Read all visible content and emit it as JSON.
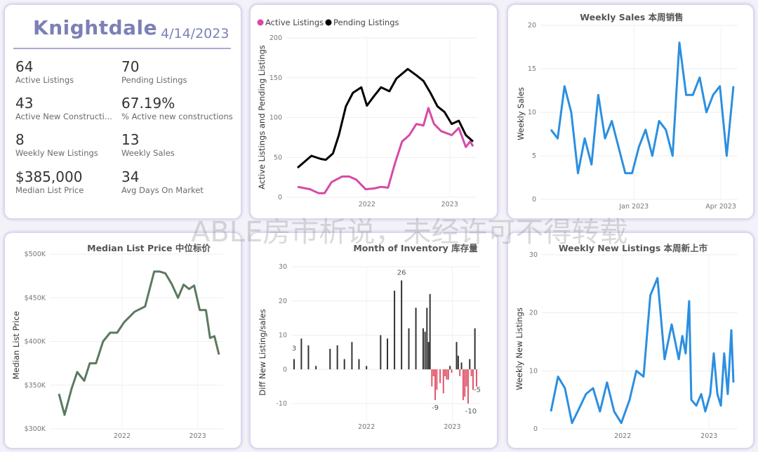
{
  "kpi_card": {
    "city": "Knightdale",
    "date": "4/14/2023",
    "metrics": [
      {
        "value": "64",
        "label": "Active Listings"
      },
      {
        "value": "70",
        "label": "Pending Listings"
      },
      {
        "value": "43",
        "label": "Active New Constructi..."
      },
      {
        "value": "67.19%",
        "label": "% Active new constructions"
      },
      {
        "value": "8",
        "label": "Weekly New Listings"
      },
      {
        "value": "13",
        "label": "Weekly Sales"
      },
      {
        "value": "$385,000",
        "label": "Median List Price"
      },
      {
        "value": "34",
        "label": "Avg Days On Market"
      }
    ]
  },
  "watermark": "ABLE房市析说，未经许可不得转载",
  "chart_data": [
    {
      "id": "listings",
      "type": "line",
      "title": "",
      "ylabel": "Active Listings and Pending Listings",
      "ylim": [
        0,
        200
      ],
      "yticks": [
        "0",
        "50",
        "100",
        "150",
        "200"
      ],
      "xticks": [
        {
          "date": "2022-01-01",
          "label": "2022"
        },
        {
          "date": "2023-01-01",
          "label": "2023"
        }
      ],
      "legend": "top-left",
      "series": [
        {
          "name": "Active Listings",
          "color": "#d64aa7",
          "points": [
            [
              "2021-03-01",
              13
            ],
            [
              "2021-04-25",
              10
            ],
            [
              "2021-06-02",
              5
            ],
            [
              "2021-06-28",
              5
            ],
            [
              "2021-07-29",
              19
            ],
            [
              "2021-09-14",
              26
            ],
            [
              "2021-10-15",
              26
            ],
            [
              "2021-11-15",
              22
            ],
            [
              "2021-12-26",
              10
            ],
            [
              "2022-02-01",
              11
            ],
            [
              "2022-03-04",
              13
            ],
            [
              "2022-04-04",
              12
            ],
            [
              "2022-05-05",
              43
            ],
            [
              "2022-06-05",
              70
            ],
            [
              "2022-07-07",
              78
            ],
            [
              "2022-08-07",
              92
            ],
            [
              "2022-09-07",
              90
            ],
            [
              "2022-09-29",
              112
            ],
            [
              "2022-10-24",
              92
            ],
            [
              "2022-11-24",
              83
            ],
            [
              "2023-01-10",
              78
            ],
            [
              "2023-02-10",
              87
            ],
            [
              "2023-03-13",
              63
            ],
            [
              "2023-04-01",
              70
            ],
            [
              "2023-04-14",
              64
            ]
          ]
        },
        {
          "name": "Pending Listings",
          "color": "#000000",
          "points": [
            [
              "2021-03-01",
              37
            ],
            [
              "2021-05-01",
              52
            ],
            [
              "2021-06-12",
              48
            ],
            [
              "2021-07-03",
              47
            ],
            [
              "2021-08-04",
              55
            ],
            [
              "2021-08-30",
              78
            ],
            [
              "2021-09-30",
              114
            ],
            [
              "2021-10-31",
              131
            ],
            [
              "2021-12-07",
              138
            ],
            [
              "2022-01-01",
              115
            ],
            [
              "2022-02-01",
              127
            ],
            [
              "2022-03-04",
              138
            ],
            [
              "2022-04-10",
              133
            ],
            [
              "2022-05-11",
              149
            ],
            [
              "2022-06-30",
              161
            ],
            [
              "2022-08-07",
              153
            ],
            [
              "2022-09-07",
              146
            ],
            [
              "2022-10-08",
              131
            ],
            [
              "2022-11-08",
              114
            ],
            [
              "2022-12-09",
              107
            ],
            [
              "2023-01-10",
              92
            ],
            [
              "2023-02-10",
              96
            ],
            [
              "2023-03-13",
              78
            ],
            [
              "2023-04-14",
              70
            ]
          ]
        }
      ]
    },
    {
      "id": "weekly-sales",
      "type": "line",
      "title": "Weekly Sales 本周销售",
      "ylabel": "Weekly Sales",
      "ylim": [
        0,
        20
      ],
      "yticks": [
        "0",
        "5",
        "10",
        "15",
        "20"
      ],
      "xticks": [
        {
          "date": "2023-01-01",
          "label": "Jan 2023"
        },
        {
          "date": "2023-04-01",
          "label": "Apr 2023"
        }
      ],
      "series": [
        {
          "color": "#2b8fe0",
          "start": "2022-10-07",
          "interval_days": 7,
          "values": [
            8,
            7,
            13,
            10,
            3,
            7,
            4,
            12,
            7,
            9,
            6,
            3,
            3,
            6,
            8,
            5,
            9,
            8,
            5,
            18,
            12,
            12,
            14,
            10,
            12,
            13,
            5,
            13
          ]
        }
      ]
    },
    {
      "id": "median-price",
      "type": "line",
      "title": "Median List Price  中位标价",
      "ylabel": "Median List Price",
      "ylim": [
        300,
        500
      ],
      "yticks": [
        "$300K",
        "$350K",
        "$400K",
        "$450K",
        "$500K"
      ],
      "xticks": [
        {
          "date": "2022-01-01",
          "label": "2022"
        },
        {
          "date": "2023-01-01",
          "label": "2023"
        }
      ],
      "series": [
        {
          "color": "#5a7a5e",
          "points": [
            [
              "2021-03-02",
              340
            ],
            [
              "2021-03-29",
              316
            ],
            [
              "2021-05-02",
              346
            ],
            [
              "2021-05-29",
              365
            ],
            [
              "2021-07-02",
              355
            ],
            [
              "2021-07-29",
              375
            ],
            [
              "2021-08-28",
              375
            ],
            [
              "2021-10-01",
              400
            ],
            [
              "2021-11-04",
              410
            ],
            [
              "2021-12-08",
              410
            ],
            [
              "2022-01-11",
              422
            ],
            [
              "2022-03-02",
              434
            ],
            [
              "2022-04-22",
              440
            ],
            [
              "2022-06-05",
              480
            ],
            [
              "2022-07-02",
              480
            ],
            [
              "2022-07-29",
              478
            ],
            [
              "2022-08-28",
              466
            ],
            [
              "2022-09-28",
              450
            ],
            [
              "2022-10-25",
              465
            ],
            [
              "2022-11-21",
              460
            ],
            [
              "2022-12-15",
              464
            ],
            [
              "2023-01-11",
              436
            ],
            [
              "2023-02-10",
              436
            ],
            [
              "2023-03-02",
              404
            ],
            [
              "2023-03-23",
              406
            ],
            [
              "2023-04-14",
              385
            ]
          ]
        }
      ]
    },
    {
      "id": "inventory",
      "type": "bar",
      "title": "Month of Inventory 库存量",
      "ylabel": "Diff New Listing/sales",
      "ylim": [
        -10,
        30
      ],
      "yticks": [
        "-10",
        "0",
        "10",
        "20",
        "30"
      ],
      "xticks": [
        {
          "date": "2022-01-01",
          "label": "2022"
        },
        {
          "date": "2023-01-01",
          "label": "2023"
        }
      ],
      "positive_color": "#333333",
      "negative_color": "#e0576b",
      "data_labels": [
        "3",
        "26",
        "-9",
        "-10",
        "-5"
      ],
      "bars": [
        [
          "2021-02-27",
          3
        ],
        [
          "2021-03-30",
          9
        ],
        [
          "2021-04-29",
          7
        ],
        [
          "2021-05-31",
          1
        ],
        [
          "2021-07-30",
          6
        ],
        [
          "2021-08-30",
          7
        ],
        [
          "2021-09-29",
          3
        ],
        [
          "2021-10-31",
          8
        ],
        [
          "2021-11-30",
          3
        ],
        [
          "2022-01-01",
          1
        ],
        [
          "2022-03-02",
          10
        ],
        [
          "2022-03-31",
          9
        ],
        [
          "2022-04-30",
          23
        ],
        [
          "2022-05-30",
          26
        ],
        [
          "2022-06-30",
          12
        ],
        [
          "2022-07-30",
          18
        ],
        [
          "2022-08-30",
          12
        ],
        [
          "2022-09-07",
          11
        ],
        [
          "2022-09-15",
          18
        ],
        [
          "2022-09-22",
          8
        ],
        [
          "2022-09-28",
          22
        ],
        [
          "2022-10-06",
          -5
        ],
        [
          "2022-10-13",
          -2
        ],
        [
          "2022-10-20",
          -9
        ],
        [
          "2022-10-27",
          -6
        ],
        [
          "2022-11-10",
          -4
        ],
        [
          "2022-11-24",
          -7
        ],
        [
          "2022-12-01",
          -2
        ],
        [
          "2022-12-08",
          -3
        ],
        [
          "2022-12-15",
          -3
        ],
        [
          "2022-12-22",
          1
        ],
        [
          "2022-12-29",
          -1
        ],
        [
          "2023-01-19",
          8
        ],
        [
          "2023-01-26",
          4
        ],
        [
          "2023-02-02",
          -2
        ],
        [
          "2023-02-09",
          2
        ],
        [
          "2023-02-16",
          -9
        ],
        [
          "2023-02-23",
          -8
        ],
        [
          "2023-03-02",
          -5
        ],
        [
          "2023-03-09",
          -10
        ],
        [
          "2023-03-16",
          3
        ],
        [
          "2023-03-23",
          -2
        ],
        [
          "2023-03-30",
          -6
        ],
        [
          "2023-04-07",
          12
        ],
        [
          "2023-04-14",
          -5
        ]
      ]
    },
    {
      "id": "new-listings",
      "type": "line",
      "title": "Weekly New Listings  本周新上市",
      "ylabel": "Weekly New Listings",
      "ylim": [
        0,
        30
      ],
      "yticks": [
        "0",
        "10",
        "20",
        "30"
      ],
      "xticks": [
        {
          "date": "2022-01-01",
          "label": "2022"
        },
        {
          "date": "2023-01-01",
          "label": "2023"
        }
      ],
      "series": [
        {
          "color": "#2b8fe0",
          "points": [
            [
              "2021-03-04",
              3
            ],
            [
              "2021-04-03",
              9
            ],
            [
              "2021-05-02",
              7
            ],
            [
              "2021-06-01",
              1
            ],
            [
              "2021-07-01",
              3.5
            ],
            [
              "2021-07-30",
              6
            ],
            [
              "2021-08-29",
              7
            ],
            [
              "2021-09-27",
              3
            ],
            [
              "2021-10-27",
              8
            ],
            [
              "2021-11-26",
              3
            ],
            [
              "2021-12-26",
              1
            ],
            [
              "2022-01-30",
              5
            ],
            [
              "2022-02-28",
              10
            ],
            [
              "2022-03-30",
              9
            ],
            [
              "2022-04-28",
              23
            ],
            [
              "2022-05-28",
              26
            ],
            [
              "2022-06-27",
              12
            ],
            [
              "2022-07-27",
              18
            ],
            [
              "2022-08-26",
              12
            ],
            [
              "2022-09-10",
              16
            ],
            [
              "2022-09-24",
              13
            ],
            [
              "2022-10-09",
              22
            ],
            [
              "2022-10-18",
              5
            ],
            [
              "2022-11-08",
              4
            ],
            [
              "2022-11-29",
              6
            ],
            [
              "2022-12-16",
              3
            ],
            [
              "2023-01-06",
              6
            ],
            [
              "2023-01-21",
              13
            ],
            [
              "2023-02-05",
              6
            ],
            [
              "2023-02-20",
              4
            ],
            [
              "2023-03-06",
              13
            ],
            [
              "2023-03-21",
              6
            ],
            [
              "2023-04-05",
              17
            ],
            [
              "2023-04-14",
              8
            ]
          ]
        }
      ]
    }
  ]
}
